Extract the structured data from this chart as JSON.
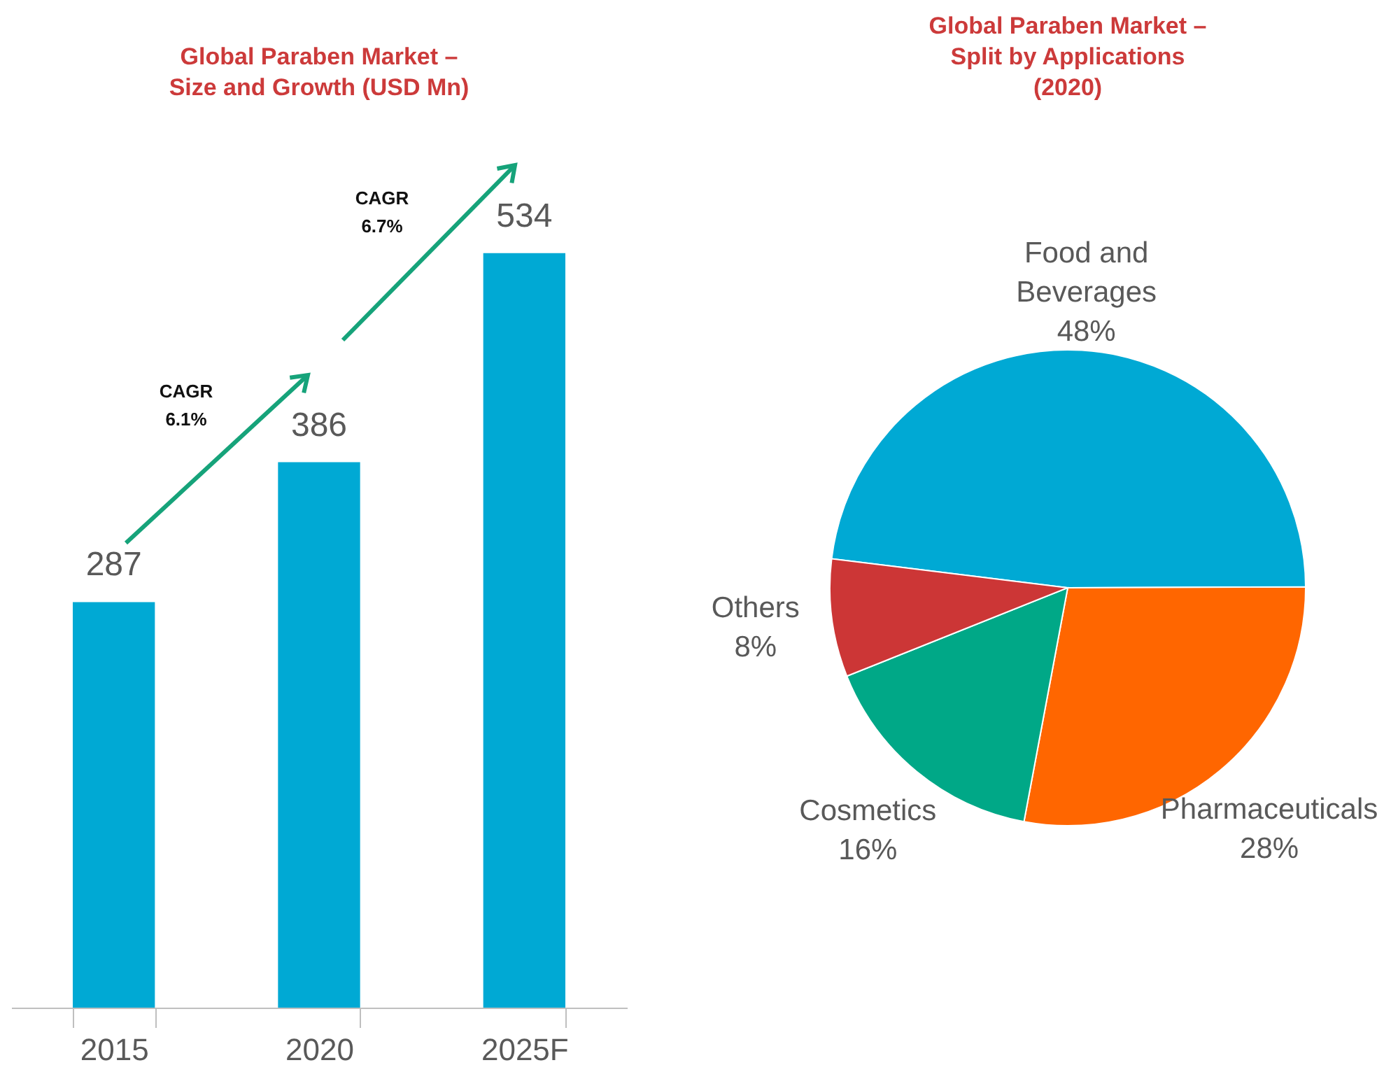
{
  "chart_data": [
    {
      "type": "bar",
      "title": "Global Paraben Market – Size and Growth (USD Mn)",
      "categories": [
        "2015",
        "2020",
        "2025F"
      ],
      "values": [
        287,
        386,
        534
      ],
      "color": "#00a9d4",
      "data_labels": true,
      "grid": false,
      "annotations": [
        "CAGR 6.1%",
        "CAGR 6.7%"
      ]
    },
    {
      "type": "pie",
      "title": "Global Paraben Market – Split by Applications (2020)",
      "categories": [
        "Food and Beverages",
        "Pharmaceuticals",
        "Cosmetics",
        "Others"
      ],
      "values": [
        48,
        28,
        16,
        8
      ],
      "colors": [
        "#00a9d4",
        "#ff6600",
        "#00a887",
        "#cc3636"
      ],
      "value_labels": [
        "48%",
        "28%",
        "16%",
        "8%"
      ],
      "legend": false
    }
  ]
}
